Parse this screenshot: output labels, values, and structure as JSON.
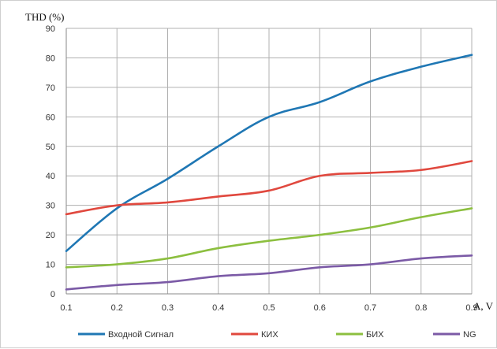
{
  "chart_data": {
    "type": "line",
    "ylabel": "THD (%)",
    "xlabel": "A, V",
    "x": [
      0.1,
      0.2,
      0.3,
      0.4,
      0.5,
      0.6,
      0.7,
      0.8,
      0.9
    ],
    "x_tick_labels": [
      "0.1",
      "0.2",
      "0.3",
      "0.4",
      "0.5",
      "0.6",
      "0.7",
      "0.8",
      "0.9"
    ],
    "ylim": [
      0,
      90
    ],
    "y_ticks": [
      0,
      10,
      20,
      30,
      40,
      50,
      60,
      70,
      80,
      90
    ],
    "grid": true,
    "legend_position": "bottom",
    "series": [
      {
        "name": "Входной Сигнал",
        "color": "#1f77b4",
        "values": [
          14.5,
          29,
          39,
          50,
          60,
          65,
          72,
          77,
          81
        ]
      },
      {
        "name": "КИХ",
        "color": "#e0483e",
        "values": [
          27,
          30,
          31,
          33,
          35,
          40,
          41,
          42,
          45
        ]
      },
      {
        "name": "БИХ",
        "color": "#8cbf3f",
        "values": [
          9,
          10,
          12,
          15.5,
          18,
          20,
          22.5,
          26,
          29
        ]
      },
      {
        "name": "NG",
        "color": "#7b5aa6",
        "values": [
          1.5,
          3,
          4,
          6,
          7,
          9,
          10,
          12,
          13
        ]
      }
    ]
  }
}
